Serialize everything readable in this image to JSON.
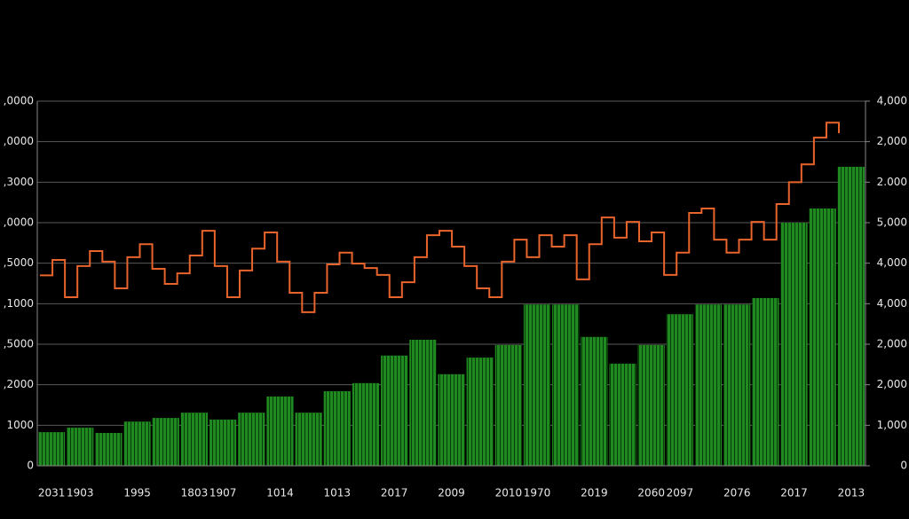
{
  "chart_data": {
    "type": "bar",
    "categories": [
      "2031",
      "1903",
      null,
      "1995",
      null,
      "1803",
      "1907",
      null,
      "1014",
      null,
      "1013",
      null,
      "2017",
      null,
      "2009",
      null,
      "2010",
      "1970",
      null,
      "2019",
      null,
      "2060",
      "2097",
      null,
      "2076",
      null,
      "2017",
      null,
      "2013"
    ],
    "series": [
      {
        "color": "#1f8a1f",
        "values": [
          0.83,
          0.94,
          0.81,
          1.09,
          1.18,
          1.31,
          1.14,
          1.31,
          1.71,
          1.31,
          1.84,
          2.04,
          2.72,
          3.11,
          2.26,
          2.67,
          2.98,
          3.98,
          3.98,
          3.18,
          2.52,
          2.98,
          3.74,
          3.98,
          3.98,
          4.14,
          6.0,
          6.35,
          7.38
        ]
      }
    ],
    "line": {
      "color": "#e8642c",
      "values": [
        4.7,
        5.08,
        4.16,
        4.93,
        5.3,
        5.04,
        4.38,
        5.15,
        5.47,
        4.86,
        4.49,
        4.75,
        5.19,
        5.8,
        4.93,
        4.16,
        4.82,
        5.36,
        5.76,
        5.04,
        4.27,
        3.79,
        4.27,
        4.97,
        5.26,
        4.99,
        4.88,
        4.71,
        4.16,
        4.53,
        5.15,
        5.69,
        5.8,
        5.41,
        4.93,
        4.38,
        4.16,
        5.04,
        5.58,
        5.15,
        5.69,
        5.41,
        5.69,
        4.6,
        5.47,
        6.13,
        5.63,
        6.02,
        5.54,
        5.76,
        4.71,
        5.26,
        6.24,
        6.35,
        5.58,
        5.26,
        5.58,
        6.02,
        5.58,
        6.46,
        7.0,
        7.44,
        8.1,
        8.47,
        8.21
      ]
    },
    "ylim": [
      0,
      9
    ],
    "yticks": [
      0,
      {
        "value": 1,
        "label": "1000"
      },
      {
        "value": 2,
        "label": ",2000"
      },
      {
        "value": 3,
        "label": ",5000"
      },
      {
        "value": 4,
        "label": ",1000"
      },
      {
        "value": 5,
        "label": ",5000"
      },
      {
        "value": 6,
        "label": ",0000"
      },
      {
        "value": 7,
        "label": ",3000"
      },
      {
        "value": 8,
        "label": ",0000"
      },
      {
        "value": 9,
        "label": ",0000"
      }
    ],
    "y2lim": [
      0,
      9
    ],
    "y2ticks": [
      0,
      {
        "value": 1,
        "label": "1,000"
      },
      {
        "value": 2,
        "label": "2,000"
      },
      {
        "value": 3,
        "label": "2,000"
      },
      {
        "value": 4,
        "label": "4,000"
      },
      {
        "value": 5,
        "label": "4,000"
      },
      {
        "value": 6,
        "label": "5,000"
      },
      {
        "value": 7,
        "label": "2.000"
      },
      {
        "value": 8,
        "label": "2,000"
      },
      {
        "value": 9,
        "label": "4,000"
      }
    ],
    "grid": true
  }
}
